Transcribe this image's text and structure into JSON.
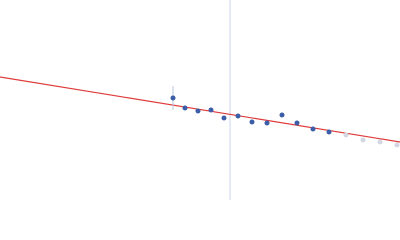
{
  "chart_data": {
    "type": "scatter",
    "xlim": [
      0,
      400
    ],
    "ylim": [
      0,
      200
    ],
    "series": [
      {
        "color": "#3c5ea8",
        "x": [
          173,
          185,
          198,
          211,
          224,
          238,
          252,
          267,
          282,
          297,
          313,
          329
        ],
        "values": [
          102,
          92,
          89,
          90,
          82,
          84,
          78,
          77,
          85,
          77,
          71,
          68
        ],
        "errors": [
          12,
          null,
          null,
          null,
          null,
          null,
          null,
          null,
          null,
          null,
          null,
          null
        ]
      },
      {
        "color": "#d3d7e2",
        "x": [
          346,
          363,
          380,
          397
        ],
        "values": [
          65,
          60,
          58,
          55
        ]
      }
    ],
    "fit": {
      "color": "#e03a3a",
      "x": [
        0,
        400
      ],
      "values": [
        123,
        58
      ]
    },
    "vline": {
      "color": "#c9d5ec",
      "x": 230
    }
  }
}
